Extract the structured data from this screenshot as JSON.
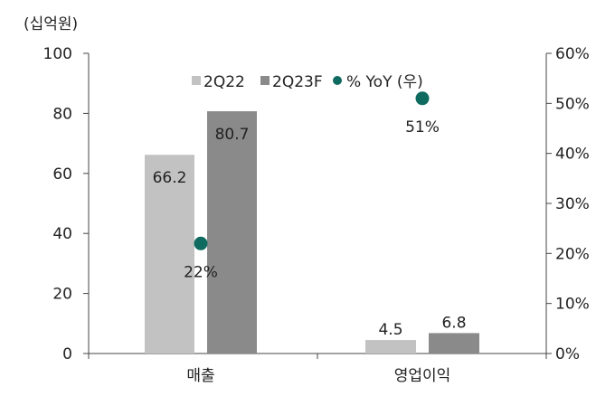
{
  "chart_data": {
    "type": "bar",
    "y_unit_label": "(십억원)",
    "categories": [
      "매출",
      "영업이익"
    ],
    "series": [
      {
        "name": "2Q22",
        "values": [
          66.2,
          4.5
        ],
        "labels": [
          "66.2",
          "4.5"
        ],
        "color": "#c2c2c2"
      },
      {
        "name": "2Q23F",
        "values": [
          80.7,
          6.8
        ],
        "labels": [
          "80.7",
          "6.8"
        ],
        "color": "#8a8a8a"
      }
    ],
    "yoy": {
      "name": "% YoY (우)",
      "values": [
        22,
        51
      ],
      "labels": [
        "22%",
        "51%"
      ],
      "color": "#0f6b5f"
    },
    "left_axis": {
      "ylim": [
        0,
        100
      ],
      "ticks": [
        "0",
        "20",
        "40",
        "60",
        "80",
        "100"
      ]
    },
    "right_axis": {
      "ylim": [
        0,
        60
      ],
      "ticks": [
        "0%",
        "10%",
        "20%",
        "30%",
        "40%",
        "50%",
        "60%"
      ]
    },
    "grid": false,
    "legend": {
      "position": "top-center"
    }
  }
}
